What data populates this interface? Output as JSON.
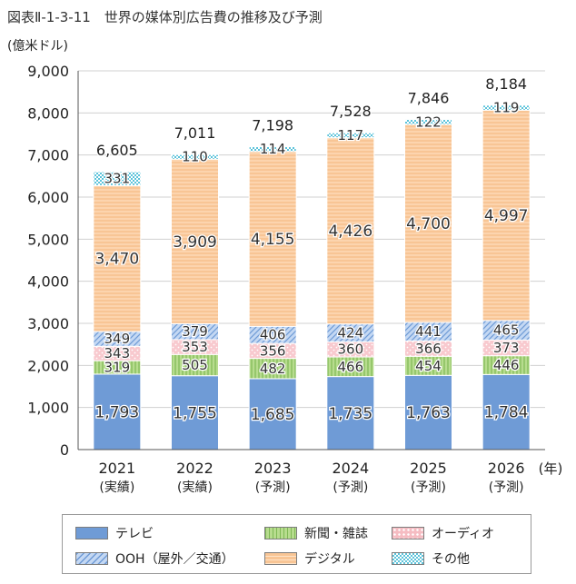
{
  "title": "図表Ⅱ-1-3-11　世界の媒体別広告費の推移及び予測",
  "unit": "(億米ドル)",
  "chart_data": {
    "type": "bar",
    "stacked": true,
    "categories": [
      "2021",
      "2022",
      "2023",
      "2024",
      "2025",
      "2026"
    ],
    "category_sublabels": [
      "(実績)",
      "(実績)",
      "(予測)",
      "(予測)",
      "(予測)",
      "(予測)"
    ],
    "x_suffix": "(年)",
    "ylim": [
      0,
      9000
    ],
    "yticks": [
      0,
      1000,
      2000,
      3000,
      4000,
      5000,
      6000,
      7000,
      8000,
      9000
    ],
    "ytick_labels": [
      "0",
      "1,000",
      "2,000",
      "3,000",
      "4,000",
      "5,000",
      "6,000",
      "7,000",
      "8,000",
      "9,000"
    ],
    "grid": true,
    "legend_position": "bottom",
    "series": [
      {
        "name": "テレビ",
        "key": "tv",
        "color": "#6f9bd6",
        "pattern": "solid",
        "values": [
          1793,
          1755,
          1685,
          1735,
          1763,
          1784
        ],
        "labels": [
          "1,793",
          "1,755",
          "1,685",
          "1,735",
          "1,763",
          "1,784"
        ]
      },
      {
        "name": "新聞・雑誌",
        "key": "print",
        "color": "#a8d27c",
        "pattern": "vertical",
        "values": [
          319,
          505,
          482,
          466,
          454,
          446
        ],
        "labels": [
          "319",
          "505",
          "482",
          "466",
          "454",
          "446"
        ]
      },
      {
        "name": "オーディオ",
        "key": "audio",
        "color": "#f5bcc2",
        "pattern": "dots",
        "values": [
          343,
          353,
          356,
          360,
          366,
          373
        ],
        "labels": [
          "343",
          "353",
          "356",
          "360",
          "366",
          "373"
        ]
      },
      {
        "name": "OOH（屋外／交通）",
        "key": "ooh",
        "color": "#a9c5ec",
        "pattern": "diagonal",
        "values": [
          349,
          379,
          406,
          424,
          441,
          465
        ],
        "labels": [
          "349",
          "379",
          "406",
          "424",
          "441",
          "465"
        ]
      },
      {
        "name": "デジタル",
        "key": "digital",
        "color": "#f7c08c",
        "pattern": "horizontal",
        "values": [
          3470,
          3909,
          4155,
          4426,
          4700,
          4997
        ],
        "labels": [
          "3,470",
          "3,909",
          "4,155",
          "4,426",
          "4,700",
          "4,997"
        ]
      },
      {
        "name": "その他",
        "key": "other",
        "color": "#74cfe0",
        "pattern": "grid",
        "values": [
          331,
          110,
          114,
          117,
          122,
          119
        ],
        "labels": [
          "331",
          "110",
          "114",
          "117",
          "122",
          "119"
        ]
      }
    ],
    "totals": [
      6605,
      7011,
      7198,
      7528,
      7846,
      8184
    ],
    "total_labels": [
      "6,605",
      "7,011",
      "7,198",
      "7,528",
      "7,846",
      "8,184"
    ]
  },
  "legend": {
    "items": [
      {
        "label": "テレビ",
        "series": "tv"
      },
      {
        "label": "新聞・雑誌",
        "series": "print"
      },
      {
        "label": "オーディオ",
        "series": "audio"
      },
      {
        "label": "OOH（屋外／交通）",
        "series": "ooh"
      },
      {
        "label": "デジタル",
        "series": "digital"
      },
      {
        "label": "その他",
        "series": "other"
      }
    ]
  }
}
